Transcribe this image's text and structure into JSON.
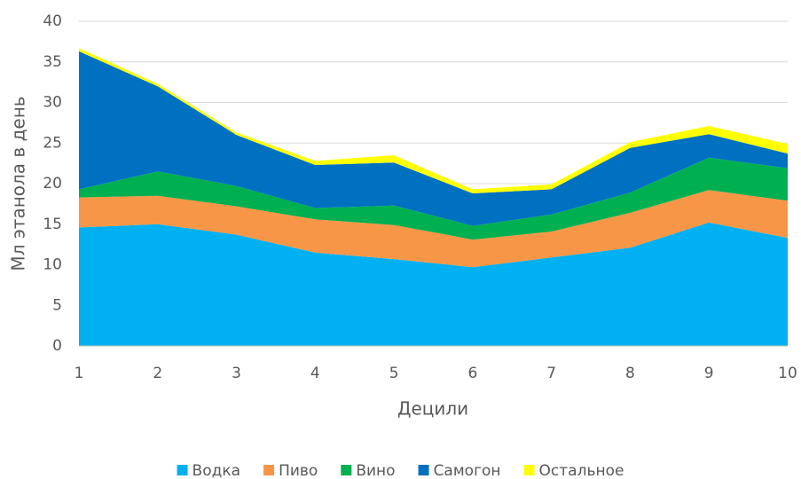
{
  "chart_data": {
    "type": "stacked_area",
    "x_label": "Децили",
    "y_label": "Мл этанола в день",
    "x": [
      1,
      2,
      3,
      4,
      5,
      6,
      7,
      8,
      9,
      10
    ],
    "xlim": [
      1,
      10
    ],
    "xticks": [
      1,
      2,
      3,
      4,
      5,
      6,
      7,
      8,
      9,
      10
    ],
    "ylim": [
      0,
      40
    ],
    "yticks": [
      0,
      5,
      10,
      15,
      20,
      25,
      30,
      35,
      40
    ],
    "grid": true,
    "legend": "bottom",
    "series": [
      {
        "name": "Водка",
        "color": "#00b0f0",
        "values": [
          14.6,
          15.0,
          13.7,
          11.5,
          10.7,
          9.7,
          10.9,
          12.1,
          15.2,
          13.3
        ]
      },
      {
        "name": "Пиво",
        "color": "#f79646",
        "values": [
          3.7,
          3.5,
          3.5,
          4.1,
          4.2,
          3.4,
          3.2,
          4.3,
          4.0,
          4.6
        ]
      },
      {
        "name": "Вино",
        "color": "#00b050",
        "values": [
          1.0,
          3.0,
          2.5,
          1.4,
          2.4,
          1.7,
          2.1,
          2.5,
          4.0,
          4.0
        ]
      },
      {
        "name": "Самогон",
        "color": "#0070c0",
        "values": [
          17.0,
          10.5,
          6.3,
          5.3,
          5.3,
          4.0,
          3.1,
          5.5,
          2.9,
          1.8
        ]
      },
      {
        "name": "Остальное",
        "color": "#ffff00",
        "values": [
          0.4,
          0.3,
          0.3,
          0.5,
          0.9,
          0.5,
          0.6,
          0.7,
          1.0,
          1.2
        ]
      }
    ]
  }
}
